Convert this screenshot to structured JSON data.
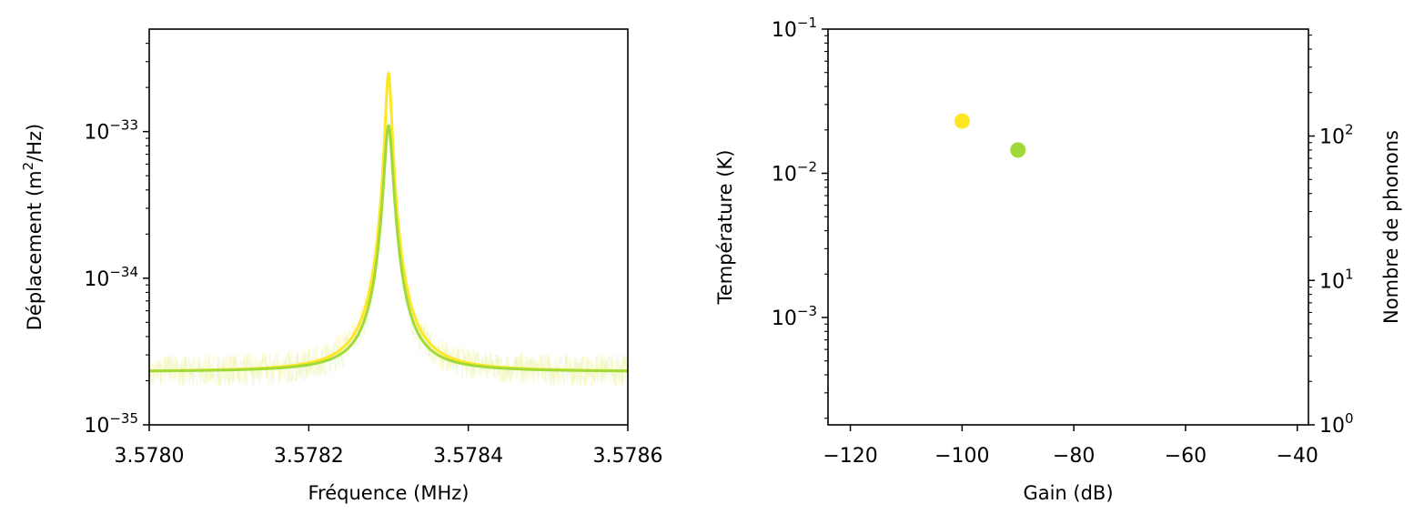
{
  "chart_data": [
    {
      "type": "line",
      "xlabel": "Fréquence (MHz)",
      "ylabel": "Déplacement (m²/Hz)",
      "ylabel_parts": {
        "before": "Déplacement (m",
        "sup": "2",
        "after": "/Hz)"
      },
      "xlim": [
        3.578,
        3.5786
      ],
      "ylim": [
        1e-35,
        5e-33
      ],
      "yscale": "log",
      "x_ticks": [
        3.578,
        3.5782,
        3.5784,
        3.5786
      ],
      "x_tick_labels": [
        "3.5780",
        "3.5782",
        "3.5784",
        "3.5786"
      ],
      "y_ticks": [
        {
          "value": 1e-35,
          "base": "10",
          "exp": "−35"
        },
        {
          "value": 1e-34,
          "base": "10",
          "exp": "−34"
        },
        {
          "value": 1e-33,
          "base": "10",
          "exp": "−33"
        }
      ],
      "grid": false,
      "series": [
        {
          "kind": "lorentzian-fit",
          "color": "#fde725",
          "center": 3.5783,
          "fwhm": 7.5e-06,
          "peak": 2.5e-33,
          "background": 2.3e-35
        },
        {
          "kind": "lorentzian-fit",
          "color": "#a0da39",
          "center": 3.5783,
          "fwhm": 1e-05,
          "peak": 1.1e-33,
          "background": 2.3e-35
        },
        {
          "kind": "measured-noise",
          "color": "#fde725",
          "opacity": 0.18,
          "level": 2.35e-35
        },
        {
          "kind": "measured-noise",
          "color": "#a0da39",
          "opacity": 0.12,
          "level": 2.3e-35
        }
      ]
    },
    {
      "type": "scatter",
      "xlabel": "Gain (dB)",
      "ylabel": "Température (K)",
      "ylabel_right": "Nombre de phonons",
      "xlim": [
        -124,
        -38
      ],
      "ylim": [
        0.00018,
        0.1
      ],
      "yscale": "log",
      "x_ticks": [
        -120,
        -100,
        -80,
        -60,
        -40
      ],
      "x_tick_labels": [
        "−120",
        "−100",
        "−80",
        "−60",
        "−40"
      ],
      "y_ticks": [
        {
          "value": 0.001,
          "base": "10",
          "exp": "−3"
        },
        {
          "value": 0.01,
          "base": "10",
          "exp": "−2"
        },
        {
          "value": 0.1,
          "base": "10",
          "exp": "−1"
        }
      ],
      "y2lim": [
        1,
        550
      ],
      "y2scale": "log",
      "y2_ticks": [
        {
          "value": 1,
          "base": "10",
          "exp": "0"
        },
        {
          "value": 10,
          "base": "10",
          "exp": "1"
        },
        {
          "value": 100,
          "base": "10",
          "exp": "2"
        }
      ],
      "grid": false,
      "points": [
        {
          "x": -100,
          "y": 0.023,
          "color": "#fde725"
        },
        {
          "x": -90,
          "y": 0.0145,
          "color": "#a0da39"
        }
      ]
    }
  ]
}
